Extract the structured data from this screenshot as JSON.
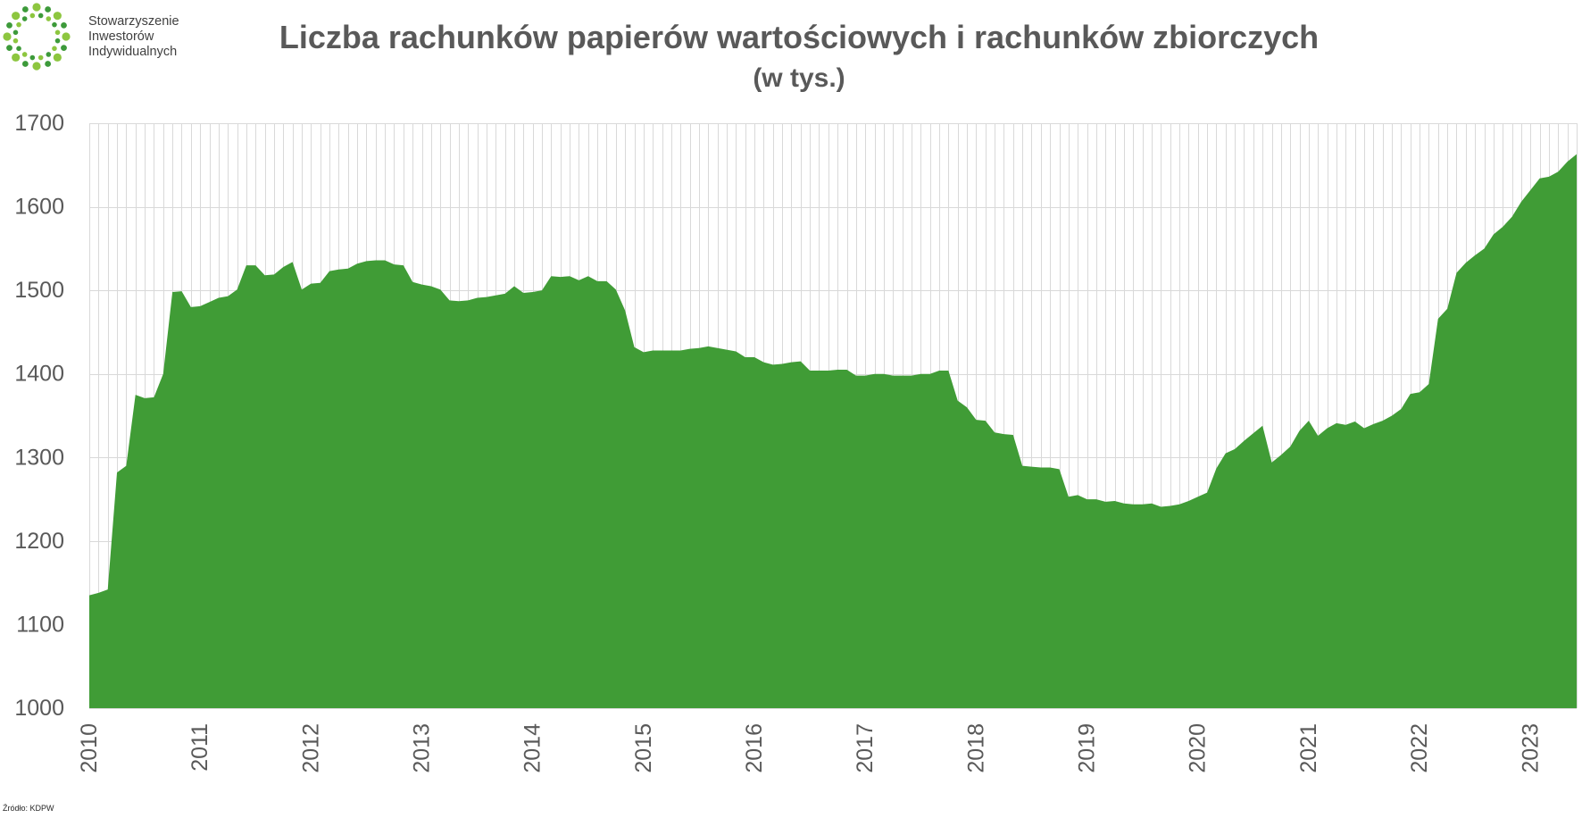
{
  "logo": {
    "lines": [
      "Stowarzyszenie",
      "Inwestorów",
      "Indywidualnych"
    ],
    "dot_colors": [
      "#8dc63f",
      "#3d9a3a"
    ]
  },
  "chart_data": {
    "type": "area",
    "title": "Liczba rachunków papierów wartościowych i rachunków zbiorczych",
    "subtitle": "(w tys.)",
    "ylim": [
      1000,
      1700
    ],
    "y_ticks": [
      1000,
      1100,
      1200,
      1300,
      1400,
      1500,
      1600,
      1700
    ],
    "grid": {
      "horizontal": true,
      "vertical": true
    },
    "series": [
      {
        "color": "#409c36",
        "points": [
          {
            "year": "2010",
            "monthly": [
              1135,
              1138,
              1142,
              1282,
              1290,
              1375,
              1371,
              1372,
              1400,
              1498,
              1499,
              1480
            ]
          },
          {
            "year": "2011",
            "monthly": [
              1481,
              1486,
              1491,
              1493,
              1501,
              1530,
              1530,
              1518,
              1519,
              1528,
              1534,
              1501
            ]
          },
          {
            "year": "2012",
            "monthly": [
              1508,
              1509,
              1523,
              1525,
              1526,
              1532,
              1535,
              1536,
              1536,
              1531,
              1530,
              1510
            ]
          },
          {
            "year": "2013",
            "monthly": [
              1507,
              1505,
              1501,
              1488,
              1487,
              1488,
              1491,
              1492,
              1494,
              1496,
              1505,
              1497
            ]
          },
          {
            "year": "2014",
            "monthly": [
              1498,
              1500,
              1517,
              1516,
              1517,
              1512,
              1517,
              1511,
              1511,
              1501,
              1476,
              1432
            ]
          },
          {
            "year": "2015",
            "monthly": [
              1426,
              1428,
              1428,
              1428,
              1428,
              1430,
              1431,
              1433,
              1431,
              1429,
              1427,
              1420
            ]
          },
          {
            "year": "2016",
            "monthly": [
              1420,
              1414,
              1411,
              1412,
              1414,
              1415,
              1404,
              1404,
              1404,
              1405,
              1405,
              1398
            ]
          },
          {
            "year": "2017",
            "monthly": [
              1398,
              1400,
              1400,
              1398,
              1398,
              1398,
              1400,
              1400,
              1404,
              1404,
              1368,
              1360
            ]
          },
          {
            "year": "2018",
            "monthly": [
              1345,
              1344,
              1330,
              1328,
              1327,
              1290,
              1289,
              1288,
              1288,
              1286,
              1253,
              1255
            ]
          },
          {
            "year": "2019",
            "monthly": [
              1250,
              1250,
              1247,
              1248,
              1245,
              1244,
              1244,
              1245,
              1241,
              1242,
              1244,
              1248
            ]
          },
          {
            "year": "2020",
            "monthly": [
              1253,
              1258,
              1287,
              1305,
              1310,
              1320,
              1329,
              1338,
              1294,
              1303,
              1313,
              1332
            ]
          },
          {
            "year": "2021",
            "monthly": [
              1344,
              1326,
              1335,
              1341,
              1339,
              1343,
              1335,
              1340,
              1344,
              1350,
              1358,
              1376
            ]
          },
          {
            "year": "2022",
            "monthly": [
              1378,
              1388,
              1466,
              1478,
              1521,
              1533,
              1542,
              1550,
              1567,
              1576,
              1588,
              1606
            ]
          },
          {
            "year": "2023",
            "monthly": [
              1620,
              1634,
              1636,
              1642,
              1654,
              1663
            ]
          }
        ]
      }
    ]
  },
  "colors": {
    "text": "#595959",
    "grid": "#d9d9d9"
  },
  "source": "Źródło: KDPW"
}
